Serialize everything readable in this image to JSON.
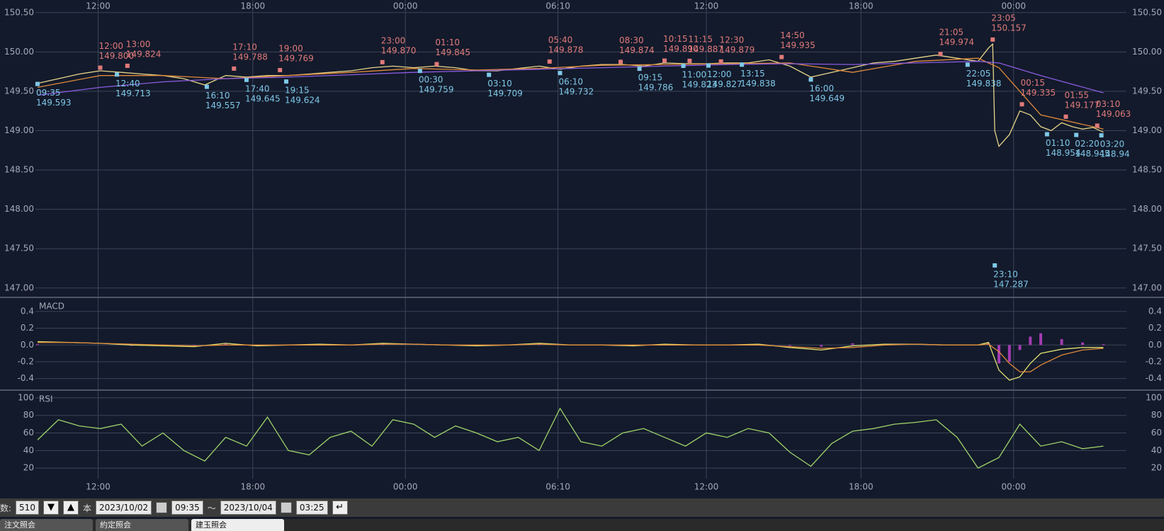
{
  "chart_data": [
    {
      "type": "line",
      "xlim": [
        -1,
        521
      ],
      "ylim": [
        146.89,
        150.66
      ],
      "xticks": [
        {
          "value": 29,
          "label": "12:00"
        },
        {
          "value": 103,
          "label": "18:00"
        },
        {
          "value": 176,
          "label": "00:00"
        },
        {
          "value": 249,
          "label": "06:10"
        },
        {
          "value": 320,
          "label": "12:00"
        },
        {
          "value": 394,
          "label": "18:00"
        },
        {
          "value": 467,
          "label": "00:00"
        }
      ],
      "yticks": [
        {
          "value": 147,
          "label": "147.00"
        },
        {
          "value": 147.5,
          "label": "147.50"
        },
        {
          "value": 148,
          "label": "148.00"
        },
        {
          "value": 148.5,
          "label": "148.50"
        },
        {
          "value": 149,
          "label": "149.00"
        },
        {
          "value": 149.5,
          "label": "149.50"
        },
        {
          "value": 150,
          "label": "150.00"
        },
        {
          "value": 150.5,
          "label": "150.50"
        }
      ],
      "grid": true,
      "series": [
        {
          "color": "#e6d48a",
          "x": [
            0,
            10,
            20,
            30,
            40,
            50,
            60,
            70,
            80,
            90,
            100,
            110,
            120,
            130,
            140,
            150,
            160,
            170,
            180,
            190,
            200,
            210,
            220,
            230,
            240,
            250,
            260,
            270,
            280,
            290,
            300,
            310,
            320,
            330,
            340,
            350,
            360,
            370,
            380,
            390,
            400,
            410,
            420,
            430,
            440,
            450,
            455,
            457,
            458,
            460,
            465,
            470,
            475,
            480,
            485,
            490,
            495,
            500,
            505,
            510
          ],
          "values": [
            149.6,
            149.66,
            149.72,
            149.76,
            149.74,
            149.72,
            149.7,
            149.66,
            149.58,
            149.7,
            149.68,
            149.7,
            149.7,
            149.72,
            149.74,
            149.76,
            149.8,
            149.82,
            149.8,
            149.82,
            149.8,
            149.76,
            149.76,
            149.79,
            149.82,
            149.78,
            149.82,
            149.84,
            149.84,
            149.82,
            149.86,
            149.85,
            149.85,
            149.86,
            149.86,
            149.9,
            149.82,
            149.68,
            149.74,
            149.8,
            149.86,
            149.88,
            149.92,
            149.96,
            149.92,
            149.88,
            150.05,
            150.1,
            149.0,
            148.8,
            148.95,
            149.25,
            149.2,
            149.05,
            149.0,
            149.1,
            149.05,
            149.02,
            149.04,
            148.98
          ]
        },
        {
          "color": "#e08a3c",
          "x": [
            0,
            30,
            60,
            90,
            120,
            150,
            180,
            210,
            240,
            270,
            300,
            330,
            360,
            390,
            420,
            450,
            460,
            480,
            510
          ],
          "values": [
            149.55,
            149.7,
            149.7,
            149.66,
            149.7,
            149.74,
            149.79,
            149.77,
            149.79,
            149.83,
            149.84,
            149.85,
            149.86,
            149.74,
            149.88,
            149.92,
            149.8,
            149.2,
            149.02
          ]
        },
        {
          "color": "#8a5ce0",
          "x": [
            0,
            30,
            60,
            90,
            120,
            150,
            180,
            210,
            240,
            270,
            300,
            330,
            360,
            390,
            420,
            450,
            460,
            480,
            510
          ],
          "values": [
            149.45,
            149.55,
            149.62,
            149.66,
            149.68,
            149.71,
            149.74,
            149.76,
            149.78,
            149.8,
            149.82,
            149.84,
            149.85,
            149.84,
            149.86,
            149.88,
            149.86,
            149.7,
            149.48
          ]
        }
      ],
      "high_color": "#e07a7a",
      "low_color": "#7ec8e8",
      "high_marks": [
        {
          "x": 30,
          "time": "12:00",
          "value": 149.8,
          "label": "149.800"
        },
        {
          "x": 43,
          "time": "13:00",
          "value": 149.824,
          "label": "149.824"
        },
        {
          "x": 94,
          "time": "17:10",
          "value": 149.788,
          "label": "149.788"
        },
        {
          "x": 116,
          "time": "19:00",
          "value": 149.769,
          "label": "149.769"
        },
        {
          "x": 165,
          "time": "23:00",
          "value": 149.87,
          "label": "149.870"
        },
        {
          "x": 191,
          "time": "01:10",
          "value": 149.845,
          "label": "149.845"
        },
        {
          "x": 245,
          "time": "05:40",
          "value": 149.878,
          "label": "149.878"
        },
        {
          "x": 279,
          "time": "08:30",
          "value": 149.874,
          "label": "149.874"
        },
        {
          "x": 300,
          "time": "10:15",
          "value": 149.89,
          "label": "149.890"
        },
        {
          "x": 312,
          "time": "11:15",
          "value": 149.887,
          "label": "149.887"
        },
        {
          "x": 327,
          "time": "12:30",
          "value": 149.879,
          "label": "149.879"
        },
        {
          "x": 356,
          "time": "14:50",
          "value": 149.935,
          "label": "149.935"
        },
        {
          "x": 432,
          "time": "21:05",
          "value": 149.974,
          "label": "149.974"
        },
        {
          "x": 457,
          "time": "23:05",
          "value": 150.157,
          "label": "150.157"
        },
        {
          "x": 471,
          "time": "00:15",
          "value": 149.335,
          "label": "149.335"
        },
        {
          "x": 492,
          "time": "01:55",
          "value": 149.177,
          "label": "149.177"
        },
        {
          "x": 507,
          "time": "03:10",
          "value": 149.063,
          "label": "149.063"
        }
      ],
      "low_marks": [
        {
          "x": 0,
          "time": "09:35",
          "value": 149.593,
          "label": "149.593"
        },
        {
          "x": 38,
          "time": "12:40",
          "value": 149.713,
          "label": "149.713"
        },
        {
          "x": 81,
          "time": "16:10",
          "value": 149.557,
          "label": "149.557"
        },
        {
          "x": 100,
          "time": "17:40",
          "value": 149.645,
          "label": "149.645"
        },
        {
          "x": 119,
          "time": "19:15",
          "value": 149.624,
          "label": "149.624"
        },
        {
          "x": 183,
          "time": "00:30",
          "value": 149.759,
          "label": "149.759"
        },
        {
          "x": 216,
          "time": "03:10",
          "value": 149.709,
          "label": "149.709"
        },
        {
          "x": 250,
          "time": "06:10",
          "value": 149.732,
          "label": "149.732"
        },
        {
          "x": 288,
          "time": "09:15",
          "value": 149.786,
          "label": "149.786"
        },
        {
          "x": 309,
          "time": "11:00",
          "value": 149.823,
          "label": "149.823"
        },
        {
          "x": 321,
          "time": "12:00",
          "value": 149.827,
          "label": "149.827"
        },
        {
          "x": 337,
          "time": "13:15",
          "value": 149.838,
          "label": "149.838"
        },
        {
          "x": 370,
          "time": "16:00",
          "value": 149.649,
          "label": "149.649"
        },
        {
          "x": 445,
          "time": "22:05",
          "value": 149.838,
          "label": "149.838"
        },
        {
          "x": 458,
          "time": "23:10",
          "value": 147.287,
          "label": "147.287"
        },
        {
          "x": 483,
          "time": "01:10",
          "value": 148.954,
          "label": "148.954"
        },
        {
          "x": 497,
          "time": "02:20",
          "value": 148.945,
          "label": "148.945"
        },
        {
          "x": 509,
          "time": "03:20",
          "value": 148.94,
          "label": "148.94"
        }
      ]
    },
    {
      "type": "macd",
      "title": "MACD",
      "xlim": [
        -1,
        521
      ],
      "ylim": [
        -0.53,
        0.56
      ],
      "xticks": [
        {
          "value": 29,
          "label": "12:00"
        },
        {
          "value": 103,
          "label": "18:00"
        },
        {
          "value": 176,
          "label": "00:00"
        },
        {
          "value": 249,
          "label": "06:10"
        },
        {
          "value": 320,
          "label": "12:00"
        },
        {
          "value": 394,
          "label": "18:00"
        },
        {
          "value": 467,
          "label": "00:00"
        }
      ],
      "yticks": [
        -0.4,
        -0.2,
        {
          "value": 0,
          "label": "0.0"
        },
        0.2,
        0.4
      ],
      "grid": true,
      "x": [
        0,
        15,
        30,
        45,
        60,
        75,
        90,
        105,
        120,
        135,
        150,
        165,
        180,
        195,
        210,
        225,
        240,
        255,
        270,
        285,
        300,
        315,
        330,
        345,
        360,
        375,
        390,
        405,
        420,
        435,
        450,
        455,
        460,
        465,
        470,
        475,
        480,
        490,
        500,
        510
      ],
      "histogram": {
        "color": "#a23bb0",
        "values": [
          0.01,
          0,
          0,
          -0.01,
          -0.01,
          -0.01,
          0.02,
          -0.01,
          0,
          0.01,
          0,
          0.01,
          0,
          0,
          -0.01,
          0,
          0.01,
          0,
          0,
          -0.01,
          0.01,
          0,
          0,
          0.01,
          -0.01,
          -0.02,
          0.02,
          0.01,
          0,
          0,
          0,
          0.02,
          -0.22,
          -0.2,
          -0.06,
          0.1,
          0.14,
          0.07,
          0.03,
          0.01
        ]
      },
      "series": [
        {
          "color": "#e0e070",
          "values": [
            0.04,
            0.03,
            0.02,
            0.0,
            -0.01,
            -0.02,
            0.02,
            -0.01,
            0.0,
            0.01,
            0.0,
            0.02,
            0.01,
            0.0,
            -0.01,
            0.0,
            0.02,
            0.0,
            0.0,
            -0.01,
            0.01,
            0.0,
            0.0,
            0.01,
            -0.03,
            -0.06,
            -0.01,
            0.01,
            0.01,
            0.0,
            0.0,
            0.03,
            -0.3,
            -0.42,
            -0.38,
            -0.22,
            -0.1,
            -0.05,
            -0.03,
            -0.03
          ]
        },
        {
          "color": "#e08a3c",
          "values": [
            0.03,
            0.03,
            0.02,
            0.01,
            0.0,
            -0.01,
            0.0,
            0.0,
            0.0,
            0.0,
            0.0,
            0.01,
            0.01,
            0.0,
            0.0,
            0.0,
            0.01,
            0.0,
            0.0,
            0.0,
            0.0,
            0.0,
            0.0,
            0.0,
            -0.02,
            -0.04,
            -0.03,
            0.0,
            0.01,
            0.0,
            0.0,
            0.01,
            -0.08,
            -0.22,
            -0.32,
            -0.32,
            -0.24,
            -0.12,
            -0.06,
            -0.04
          ]
        }
      ]
    },
    {
      "type": "line",
      "title": "RSI",
      "xlim": [
        -1,
        521
      ],
      "ylim": [
        8,
        108
      ],
      "xticks": [
        {
          "value": 29,
          "label": "12:00"
        },
        {
          "value": 103,
          "label": "18:00"
        },
        {
          "value": 176,
          "label": "00:00"
        },
        {
          "value": 249,
          "label": "06:10"
        },
        {
          "value": 320,
          "label": "12:00"
        },
        {
          "value": 394,
          "label": "18:00"
        },
        {
          "value": 467,
          "label": "00:00"
        }
      ],
      "yticks": [
        20,
        40,
        60,
        80,
        100
      ],
      "grid": true,
      "series": [
        {
          "color": "#9ed36a",
          "x": [
            0,
            10,
            20,
            30,
            40,
            50,
            60,
            70,
            80,
            90,
            100,
            110,
            120,
            130,
            140,
            150,
            160,
            170,
            180,
            190,
            200,
            210,
            220,
            230,
            240,
            250,
            260,
            270,
            280,
            290,
            300,
            310,
            320,
            330,
            340,
            350,
            360,
            370,
            380,
            390,
            400,
            410,
            420,
            430,
            440,
            450,
            460,
            470,
            480,
            490,
            500,
            510
          ],
          "values": [
            52,
            75,
            68,
            65,
            70,
            45,
            60,
            40,
            28,
            55,
            45,
            78,
            40,
            35,
            55,
            62,
            45,
            75,
            70,
            55,
            68,
            60,
            50,
            55,
            40,
            88,
            50,
            45,
            60,
            65,
            55,
            45,
            60,
            55,
            65,
            60,
            38,
            22,
            48,
            62,
            65,
            70,
            72,
            75,
            55,
            20,
            32,
            70,
            45,
            50,
            42,
            45
          ]
        }
      ]
    }
  ],
  "toolbar": {
    "count_label": "数:",
    "count": "510",
    "unit": "本",
    "start_date": "2023/10/02",
    "start_time": "09:35",
    "separator": "〜",
    "end_date": "2023/10/04",
    "end_time": "03:25"
  },
  "tabs": [
    "注文照会",
    "約定照会",
    "建玉照会"
  ]
}
